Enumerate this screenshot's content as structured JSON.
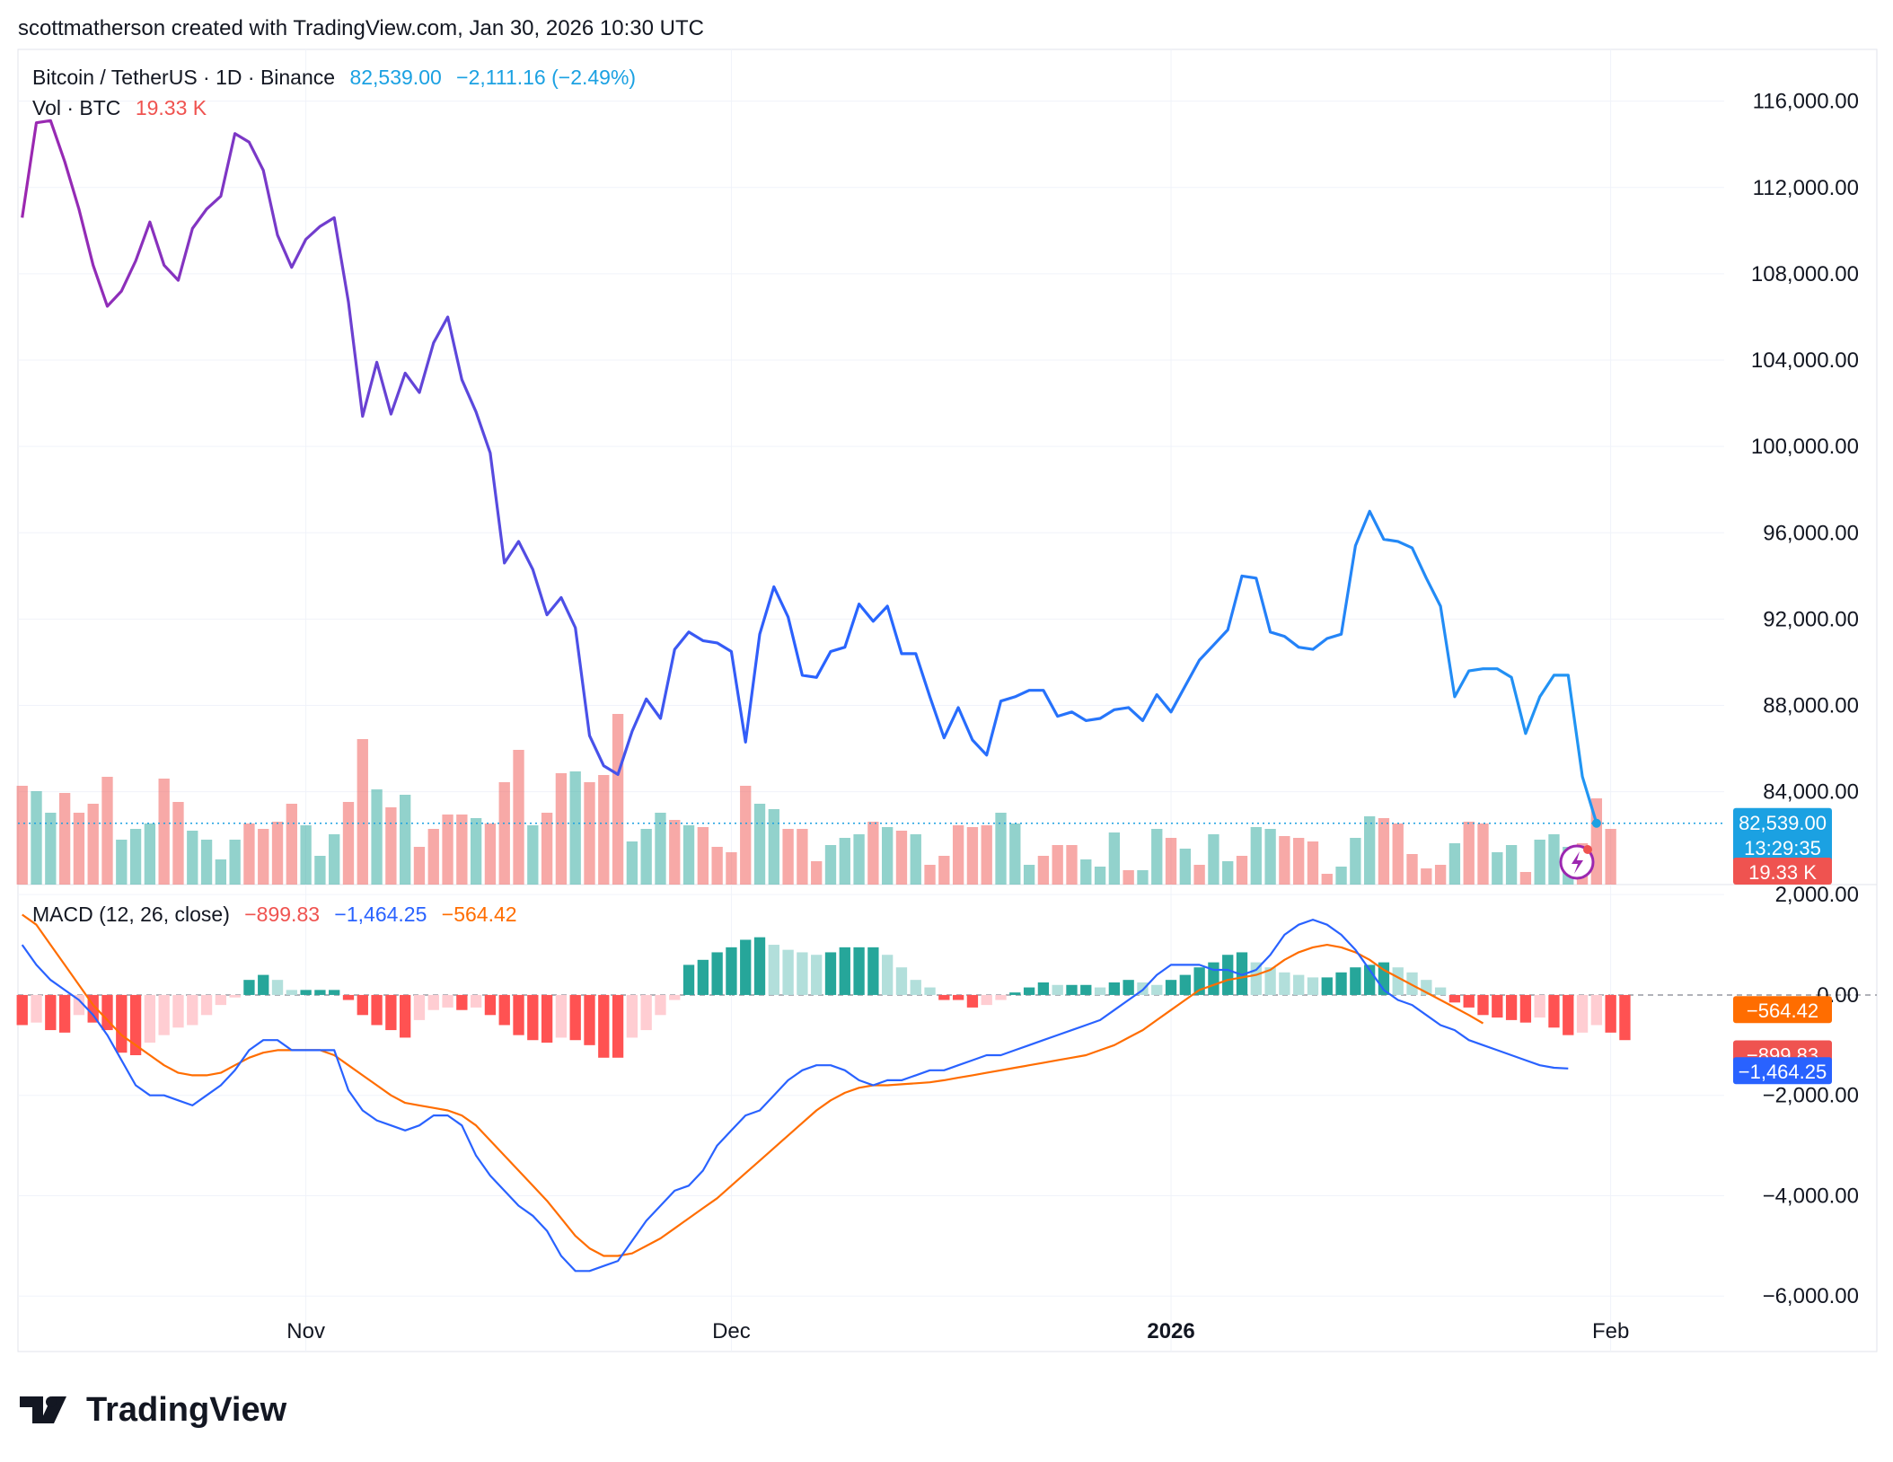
{
  "header": {
    "credit": "scottmatherson created with TradingView.com, Jan 30, 2026 10:30 UTC"
  },
  "footer": {
    "brand": "TradingView"
  },
  "colors": {
    "up": "#26a69a",
    "down": "#ef5350",
    "price": "#2962ff",
    "macd_line": "#2962ff",
    "signal_line": "#ff6d00",
    "last_tag": "#1ba1e2"
  },
  "chart_data": [
    {
      "type": "line",
      "panel": "price",
      "title": "Bitcoin / TetherUS · 1D · Binance",
      "legend": {
        "symbol": "Bitcoin / TetherUS · 1D · Binance",
        "last": "82,539.00",
        "change": "−2,111.16 (−2.49%)"
      },
      "y_ticks": [
        116000,
        112000,
        108000,
        104000,
        100000,
        96000,
        92000,
        88000,
        84000
      ],
      "y_tick_labels": [
        "116,000.00",
        "112,000.00",
        "108,000.00",
        "104,000.00",
        "100,000.00",
        "96,000.00",
        "92,000.00",
        "88,000.00",
        "84,000.00"
      ],
      "ylim": [
        79700,
        118400
      ],
      "x_ticks": [
        {
          "index": 20,
          "label": "Nov",
          "bold": false
        },
        {
          "index": 50,
          "label": "Dec",
          "bold": false
        },
        {
          "index": 81,
          "label": "2026",
          "bold": true
        },
        {
          "index": 112,
          "label": "Feb",
          "bold": false
        }
      ],
      "x_range": [
        -0.3,
        120
      ],
      "gradient": {
        "from": "#9c27b0",
        "to": "#2196f3"
      },
      "last_tag": {
        "price": "82,539.00",
        "countdown": "13:29:35"
      },
      "series": [
        {
          "name": "BTCUSDT close",
          "values": [
            110600,
            115000,
            115100,
            113200,
            111000,
            108400,
            106500,
            107200,
            108600,
            110400,
            108400,
            107700,
            110100,
            111000,
            111600,
            114500,
            114100,
            112800,
            109800,
            108300,
            109600,
            110200,
            110600,
            106700,
            101400,
            103900,
            101500,
            103400,
            102500,
            104800,
            106000,
            103100,
            101600,
            99700,
            94600,
            95600,
            94300,
            92200,
            93000,
            91600,
            86600,
            85200,
            84800,
            86800,
            88300,
            87400,
            90600,
            91400,
            91000,
            90900,
            90500,
            86300,
            91300,
            93500,
            92100,
            89400,
            89300,
            90500,
            90700,
            92700,
            91900,
            92600,
            90400,
            90400,
            88400,
            86500,
            87900,
            86400,
            85700,
            88200,
            88400,
            88700,
            88700,
            87500,
            87700,
            87300,
            87400,
            87800,
            87900,
            87300,
            88500,
            87700,
            88900,
            90100,
            90800,
            91500,
            94000,
            93900,
            91400,
            91200,
            90700,
            90600,
            91100,
            91300,
            95400,
            97000,
            95700,
            95600,
            95300,
            93900,
            92600,
            88400,
            89600,
            89700,
            89700,
            89300,
            86700,
            88400,
            89400,
            89400,
            84700,
            82539
          ]
        }
      ]
    },
    {
      "type": "bar",
      "panel": "volume",
      "title": "Vol · BTC",
      "legend": {
        "label": "Vol · BTC",
        "value": "19.33 K"
      },
      "last_tag": "19.33 K",
      "series": [
        {
          "name": "Volume",
          "values": [
            0.55,
            0.52,
            0.4,
            0.51,
            0.4,
            0.45,
            0.6,
            0.25,
            0.31,
            0.34,
            0.59,
            0.46,
            0.3,
            0.25,
            0.14,
            0.25,
            0.34,
            0.31,
            0.35,
            0.45,
            0.33,
            0.16,
            0.28,
            0.46,
            0.81,
            0.53,
            0.43,
            0.5,
            0.21,
            0.31,
            0.39,
            0.39,
            0.37,
            0.34,
            0.57,
            0.75,
            0.33,
            0.4,
            0.62,
            0.63,
            0.57,
            0.61,
            0.95,
            0.24,
            0.31,
            0.4,
            0.36,
            0.33,
            0.32,
            0.21,
            0.18,
            0.55,
            0.45,
            0.42,
            0.31,
            0.31,
            0.13,
            0.22,
            0.26,
            0.28,
            0.35,
            0.32,
            0.3,
            0.28,
            0.11,
            0.16,
            0.33,
            0.32,
            0.33,
            0.4,
            0.34,
            0.11,
            0.16,
            0.22,
            0.22,
            0.14,
            0.1,
            0.29,
            0.08,
            0.08,
            0.31,
            0.26,
            0.2,
            0.11,
            0.28,
            0.13,
            0.16,
            0.32,
            0.31,
            0.27,
            0.26,
            0.24,
            0.06,
            0.1,
            0.26,
            0.38,
            0.37,
            0.34,
            0.17,
            0.09,
            0.11,
            0.23,
            0.35,
            0.34,
            0.18,
            0.22,
            0.07,
            0.25,
            0.28,
            0.21,
            0.23,
            0.48,
            0.31
          ]
        }
      ],
      "direction": [
        "d",
        "u",
        "u",
        "d",
        "d",
        "d",
        "d",
        "u",
        "u",
        "u",
        "d",
        "d",
        "u",
        "u",
        "u",
        "u",
        "d",
        "d",
        "d",
        "d",
        "u",
        "u",
        "u",
        "d",
        "d",
        "u",
        "d",
        "u",
        "d",
        "d",
        "d",
        "d",
        "u",
        "d",
        "d",
        "d",
        "u",
        "d",
        "d",
        "u",
        "d",
        "d",
        "d",
        "u",
        "u",
        "u",
        "d",
        "u",
        "d",
        "d",
        "d",
        "d",
        "u",
        "u",
        "d",
        "d",
        "d",
        "u",
        "u",
        "u",
        "d",
        "u",
        "d",
        "u",
        "d",
        "d",
        "d",
        "d",
        "d",
        "u",
        "u",
        "u",
        "d",
        "d",
        "d",
        "u",
        "u",
        "u",
        "d",
        "u",
        "u",
        "d",
        "u",
        "d",
        "u",
        "u",
        "d",
        "u",
        "u",
        "d",
        "d",
        "d",
        "d",
        "u",
        "u",
        "u",
        "d",
        "d",
        "d",
        "d",
        "d",
        "u",
        "d",
        "d",
        "u",
        "u",
        "d",
        "u",
        "u",
        "u",
        "d",
        "d",
        "d"
      ]
    },
    {
      "type": "bar",
      "panel": "macd",
      "title": "MACD (12, 26, close)",
      "legend": {
        "label": "MACD (12, 26, close)",
        "hist": "−899.83",
        "macd": "−1,464.25",
        "signal": "−564.42"
      },
      "y_ticks": [
        2000,
        0,
        -2000,
        -4000,
        -6000
      ],
      "y_tick_labels": [
        "2,000.00",
        "0.00",
        "−2,000.00",
        "−4,000.00",
        "−6,000.00"
      ],
      "ylim": [
        -6300,
        2200
      ],
      "tags": {
        "signal": "−564.42",
        "hist": "−899.83",
        "macd": "−1,464.25"
      },
      "series": [
        {
          "name": "MACD",
          "values": [
            1000,
            600,
            300,
            100,
            -100,
            -400,
            -800,
            -1300,
            -1800,
            -2000,
            -2000,
            -2100,
            -2200,
            -2000,
            -1800,
            -1500,
            -1100,
            -900,
            -900,
            -1100,
            -1100,
            -1100,
            -1100,
            -1900,
            -2300,
            -2500,
            -2600,
            -2700,
            -2600,
            -2400,
            -2400,
            -2600,
            -3200,
            -3600,
            -3900,
            -4200,
            -4400,
            -4700,
            -5200,
            -5500,
            -5500,
            -5400,
            -5300,
            -4900,
            -4500,
            -4200,
            -3900,
            -3800,
            -3500,
            -3000,
            -2700,
            -2400,
            -2300,
            -2000,
            -1700,
            -1500,
            -1400,
            -1400,
            -1500,
            -1700,
            -1800,
            -1700,
            -1700,
            -1600,
            -1500,
            -1500,
            -1400,
            -1300,
            -1200,
            -1200,
            -1100,
            -1000,
            -900,
            -800,
            -700,
            -600,
            -500,
            -300,
            -100,
            100,
            400,
            600,
            600,
            600,
            500,
            500,
            400,
            500,
            800,
            1200,
            1400,
            1500,
            1400,
            1200,
            900,
            500,
            100,
            -100,
            -200,
            -400,
            -600,
            -700,
            -900,
            -1000,
            -1100,
            -1200,
            -1300,
            -1400,
            -1450,
            -1464.25
          ]
        },
        {
          "name": "Signal",
          "values": [
            1600,
            1400,
            1000,
            600,
            200,
            -200,
            -500,
            -800,
            -1000,
            -1200,
            -1400,
            -1550,
            -1600,
            -1600,
            -1550,
            -1400,
            -1250,
            -1150,
            -1100,
            -1100,
            -1100,
            -1100,
            -1200,
            -1400,
            -1600,
            -1800,
            -2000,
            -2150,
            -2200,
            -2250,
            -2300,
            -2400,
            -2600,
            -2900,
            -3200,
            -3500,
            -3800,
            -4100,
            -4450,
            -4800,
            -5050,
            -5200,
            -5200,
            -5150,
            -5000,
            -4850,
            -4650,
            -4450,
            -4250,
            -4050,
            -3800,
            -3550,
            -3300,
            -3050,
            -2800,
            -2550,
            -2300,
            -2100,
            -1950,
            -1850,
            -1800,
            -1800,
            -1780,
            -1760,
            -1740,
            -1700,
            -1650,
            -1600,
            -1550,
            -1500,
            -1450,
            -1400,
            -1350,
            -1300,
            -1250,
            -1200,
            -1100,
            -1000,
            -850,
            -700,
            -500,
            -300,
            -100,
            100,
            200,
            300,
            350,
            400,
            500,
            700,
            850,
            950,
            1000,
            950,
            850,
            700,
            500,
            350,
            200,
            50,
            -100,
            -250,
            -400,
            -564.42
          ]
        },
        {
          "name": "Histogram",
          "values": [
            -600,
            -550,
            -700,
            -750,
            -400,
            -550,
            -700,
            -1150,
            -1200,
            -950,
            -800,
            -650,
            -600,
            -400,
            -200,
            -50,
            300,
            400,
            300,
            100,
            100,
            100,
            100,
            -100,
            -400,
            -600,
            -700,
            -850,
            -500,
            -300,
            -250,
            -300,
            -250,
            -400,
            -600,
            -800,
            -900,
            -950,
            -850,
            -900,
            -1000,
            -1250,
            -1250,
            -850,
            -700,
            -400,
            -100,
            600,
            700,
            850,
            950,
            1100,
            1150,
            1000,
            900,
            850,
            800,
            850,
            950,
            950,
            950,
            800,
            550,
            300,
            150,
            -100,
            -100,
            -250,
            -200,
            -100,
            50,
            150,
            250,
            200,
            200,
            200,
            150,
            250,
            300,
            250,
            200,
            300,
            400,
            550,
            650,
            800,
            850,
            650,
            550,
            450,
            400,
            350,
            350,
            450,
            550,
            600,
            650,
            550,
            450,
            300,
            150,
            -150,
            -250,
            -400,
            -450,
            -500,
            -550,
            -450,
            -650,
            -800,
            -750,
            -600,
            -750,
            -899.83
          ]
        }
      ]
    }
  ]
}
